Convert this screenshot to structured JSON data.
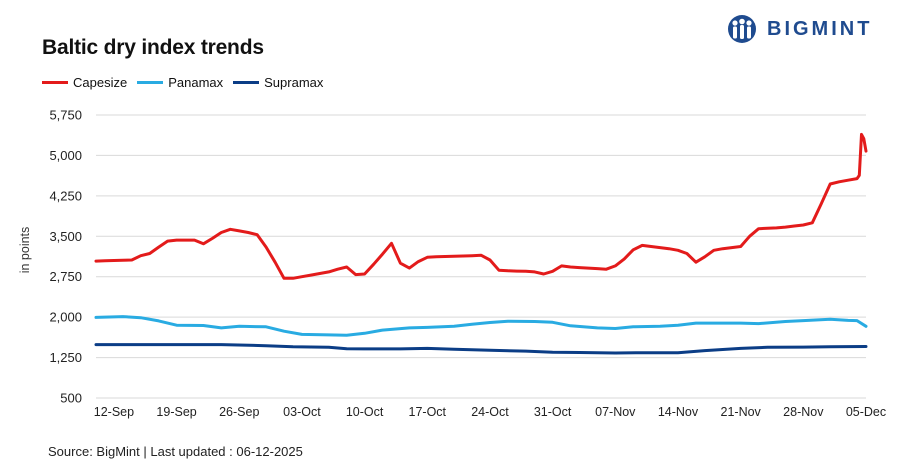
{
  "header": {
    "title": "Baltic dry index trends",
    "logo_text": "BIGMINT",
    "logo_icon": "bigmint-people-icon"
  },
  "footer": {
    "source": "Source: BigMint | Last updated : 06-12-2025"
  },
  "colors": {
    "capesize": "#e31b1b",
    "panamax": "#29abe2",
    "supramax": "#0b3d86",
    "grid": "#d9d9d9",
    "brand": "#1f4b8f"
  },
  "chart_data": {
    "type": "line",
    "title": "Baltic dry index trends",
    "xlabel": "",
    "ylabel": "in points",
    "ylim": [
      500,
      5750
    ],
    "yticks": [
      "5,750",
      "5,000",
      "4,250",
      "3,500",
      "2,750",
      "2,000",
      "1,250",
      "500"
    ],
    "ytick_values": [
      5750,
      5000,
      4250,
      3500,
      2750,
      2000,
      1250,
      500
    ],
    "xticks": [
      "12-Sep",
      "19-Sep",
      "26-Sep",
      "03-Oct",
      "10-Oct",
      "17-Oct",
      "24-Oct",
      "31-Oct",
      "07-Nov",
      "14-Nov",
      "21-Nov",
      "28-Nov",
      "05-Dec"
    ],
    "x_start": "2025-09-10",
    "x_end": "2025-12-05",
    "grid": "horizontal",
    "legend": "top-left",
    "series": [
      {
        "name": "Capesize",
        "color_key": "capesize",
        "points": [
          [
            "2025-09-10",
            3040
          ],
          [
            "2025-09-11",
            3045
          ],
          [
            "2025-09-12",
            3050
          ],
          [
            "2025-09-13",
            3055
          ],
          [
            "2025-09-14",
            3060
          ],
          [
            "2025-09-15",
            3140
          ],
          [
            "2025-09-16",
            3180
          ],
          [
            "2025-09-17",
            3300
          ],
          [
            "2025-09-18",
            3410
          ],
          [
            "2025-09-19",
            3430
          ],
          [
            "2025-09-20",
            3430
          ],
          [
            "2025-09-21",
            3430
          ],
          [
            "2025-09-22",
            3360
          ],
          [
            "2025-09-23",
            3460
          ],
          [
            "2025-09-24",
            3570
          ],
          [
            "2025-09-25",
            3630
          ],
          [
            "2025-09-26",
            3600
          ],
          [
            "2025-09-27",
            3570
          ],
          [
            "2025-09-28",
            3530
          ],
          [
            "2025-09-29",
            3300
          ],
          [
            "2025-09-30",
            3020
          ],
          [
            "2025-10-01",
            2720
          ],
          [
            "2025-10-02",
            2720
          ],
          [
            "2025-10-03",
            2750
          ],
          [
            "2025-10-04",
            2780
          ],
          [
            "2025-10-05",
            2810
          ],
          [
            "2025-10-06",
            2840
          ],
          [
            "2025-10-07",
            2890
          ],
          [
            "2025-10-08",
            2930
          ],
          [
            "2025-10-09",
            2790
          ],
          [
            "2025-10-10",
            2800
          ],
          [
            "2025-10-11",
            2980
          ],
          [
            "2025-10-12",
            3170
          ],
          [
            "2025-10-13",
            3370
          ],
          [
            "2025-10-14",
            3000
          ],
          [
            "2025-10-15",
            2910
          ],
          [
            "2025-10-16",
            3030
          ],
          [
            "2025-10-17",
            3110
          ],
          [
            "2025-10-18",
            3120
          ],
          [
            "2025-10-19",
            3125
          ],
          [
            "2025-10-20",
            3130
          ],
          [
            "2025-10-21",
            3135
          ],
          [
            "2025-10-22",
            3140
          ],
          [
            "2025-10-23",
            3150
          ],
          [
            "2025-10-24",
            3060
          ],
          [
            "2025-10-25",
            2870
          ],
          [
            "2025-10-26",
            2860
          ],
          [
            "2025-10-27",
            2855
          ],
          [
            "2025-10-28",
            2850
          ],
          [
            "2025-10-29",
            2840
          ],
          [
            "2025-10-30",
            2800
          ],
          [
            "2025-10-31",
            2850
          ],
          [
            "2025-11-01",
            2950
          ],
          [
            "2025-11-02",
            2930
          ],
          [
            "2025-11-03",
            2920
          ],
          [
            "2025-11-04",
            2910
          ],
          [
            "2025-11-05",
            2900
          ],
          [
            "2025-11-06",
            2890
          ],
          [
            "2025-11-07",
            2950
          ],
          [
            "2025-11-08",
            3080
          ],
          [
            "2025-11-09",
            3250
          ],
          [
            "2025-11-10",
            3330
          ],
          [
            "2025-11-11",
            3310
          ],
          [
            "2025-11-12",
            3290
          ],
          [
            "2025-11-13",
            3270
          ],
          [
            "2025-11-14",
            3240
          ],
          [
            "2025-11-15",
            3180
          ],
          [
            "2025-11-16",
            3020
          ],
          [
            "2025-11-17",
            3120
          ],
          [
            "2025-11-18",
            3240
          ],
          [
            "2025-11-19",
            3270
          ],
          [
            "2025-11-20",
            3290
          ],
          [
            "2025-11-21",
            3310
          ],
          [
            "2025-11-22",
            3500
          ],
          [
            "2025-11-23",
            3640
          ],
          [
            "2025-11-24",
            3650
          ],
          [
            "2025-11-25",
            3655
          ],
          [
            "2025-11-26",
            3670
          ],
          [
            "2025-11-27",
            3690
          ],
          [
            "2025-11-28",
            3710
          ],
          [
            "2025-11-29",
            3750
          ],
          [
            "2025-11-30",
            4100
          ],
          [
            "2025-12-01",
            4470
          ],
          [
            "2025-12-02",
            4510
          ],
          [
            "2025-12-03",
            4540
          ],
          [
            "2025-12-04",
            4570
          ],
          [
            "2025-12-04T06",
            4630
          ],
          [
            "2025-12-04T12",
            5390
          ],
          [
            "2025-12-04T18",
            5310
          ],
          [
            "2025-12-05",
            5080
          ]
        ]
      },
      {
        "name": "Panamax",
        "color_key": "panamax",
        "points": [
          [
            "2025-09-10",
            1995
          ],
          [
            "2025-09-13",
            2010
          ],
          [
            "2025-09-15",
            1990
          ],
          [
            "2025-09-17",
            1930
          ],
          [
            "2025-09-19",
            1850
          ],
          [
            "2025-09-22",
            1845
          ],
          [
            "2025-09-24",
            1800
          ],
          [
            "2025-09-26",
            1830
          ],
          [
            "2025-09-29",
            1820
          ],
          [
            "2025-10-01",
            1740
          ],
          [
            "2025-10-03",
            1680
          ],
          [
            "2025-10-06",
            1670
          ],
          [
            "2025-10-08",
            1665
          ],
          [
            "2025-10-10",
            1700
          ],
          [
            "2025-10-12",
            1760
          ],
          [
            "2025-10-15",
            1800
          ],
          [
            "2025-10-17",
            1810
          ],
          [
            "2025-10-20",
            1830
          ],
          [
            "2025-10-22",
            1870
          ],
          [
            "2025-10-24",
            1900
          ],
          [
            "2025-10-26",
            1925
          ],
          [
            "2025-10-29",
            1920
          ],
          [
            "2025-10-31",
            1905
          ],
          [
            "2025-11-02",
            1840
          ],
          [
            "2025-11-05",
            1800
          ],
          [
            "2025-11-07",
            1790
          ],
          [
            "2025-11-09",
            1820
          ],
          [
            "2025-11-12",
            1830
          ],
          [
            "2025-11-14",
            1850
          ],
          [
            "2025-11-16",
            1890
          ],
          [
            "2025-11-19",
            1890
          ],
          [
            "2025-11-21",
            1890
          ],
          [
            "2025-11-23",
            1880
          ],
          [
            "2025-11-26",
            1920
          ],
          [
            "2025-11-28",
            1935
          ],
          [
            "2025-12-01",
            1960
          ],
          [
            "2025-12-03",
            1940
          ],
          [
            "2025-12-04",
            1935
          ],
          [
            "2025-12-05",
            1830
          ]
        ]
      },
      {
        "name": "Supramax",
        "color_key": "supramax",
        "points": [
          [
            "2025-09-10",
            1490
          ],
          [
            "2025-09-14",
            1490
          ],
          [
            "2025-09-19",
            1490
          ],
          [
            "2025-09-24",
            1490
          ],
          [
            "2025-09-29",
            1470
          ],
          [
            "2025-10-02",
            1450
          ],
          [
            "2025-10-06",
            1440
          ],
          [
            "2025-10-08",
            1415
          ],
          [
            "2025-10-10",
            1410
          ],
          [
            "2025-10-14",
            1410
          ],
          [
            "2025-10-17",
            1420
          ],
          [
            "2025-10-20",
            1405
          ],
          [
            "2025-10-24",
            1385
          ],
          [
            "2025-10-28",
            1370
          ],
          [
            "2025-10-31",
            1350
          ],
          [
            "2025-11-03",
            1345
          ],
          [
            "2025-11-07",
            1335
          ],
          [
            "2025-11-10",
            1340
          ],
          [
            "2025-11-14",
            1340
          ],
          [
            "2025-11-17",
            1380
          ],
          [
            "2025-11-21",
            1420
          ],
          [
            "2025-11-24",
            1440
          ],
          [
            "2025-11-28",
            1445
          ],
          [
            "2025-12-01",
            1450
          ],
          [
            "2025-12-05",
            1455
          ]
        ]
      }
    ]
  }
}
